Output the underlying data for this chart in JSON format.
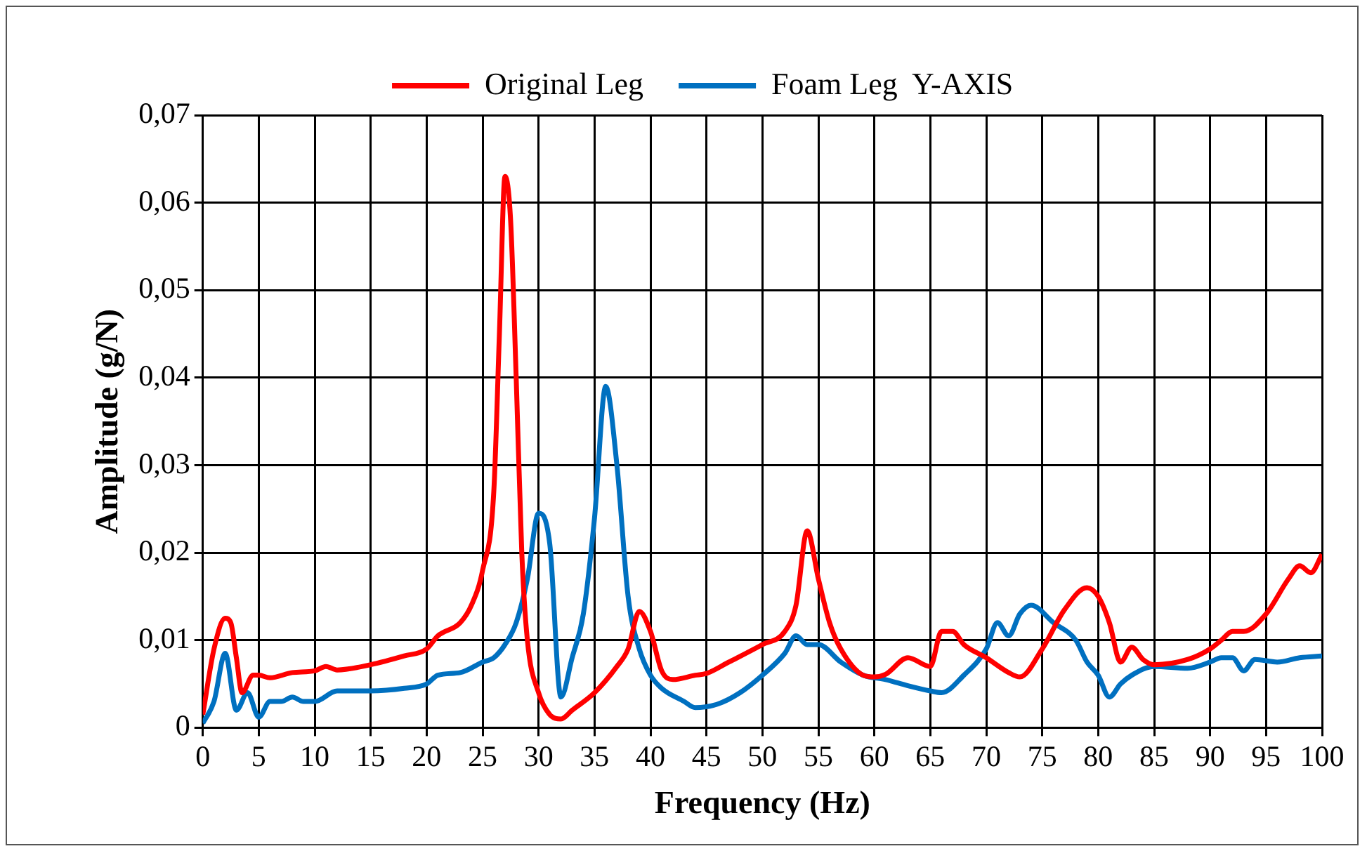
{
  "chart_data": {
    "type": "line",
    "xlabel": "Frequency (Hz)",
    "ylabel": "Amplitude (g/N)",
    "xlim": [
      0,
      100
    ],
    "xticks": [
      0,
      5,
      10,
      15,
      20,
      25,
      30,
      35,
      40,
      45,
      50,
      55,
      60,
      65,
      70,
      75,
      80,
      85,
      90,
      95,
      100
    ],
    "ylim": [
      0,
      0.07
    ],
    "yticks": [
      {
        "value": 0,
        "label": "0"
      },
      {
        "value": 0.01,
        "label": "0,01"
      },
      {
        "value": 0.02,
        "label": "0,02"
      },
      {
        "value": 0.03,
        "label": "0,03"
      },
      {
        "value": 0.04,
        "label": "0,04"
      },
      {
        "value": 0.05,
        "label": "0,05"
      },
      {
        "value": 0.06,
        "label": "0,06"
      },
      {
        "value": 0.07,
        "label": "0,07"
      }
    ],
    "grid": true,
    "legend": "top",
    "marker": "none",
    "line_style": "solid",
    "series": [
      {
        "name": "Original Leg",
        "color": "#ff0000",
        "x": [
          0,
          1,
          2,
          2.5,
          3,
          3.5,
          4.5,
          5,
          6,
          8,
          10,
          11,
          12,
          15,
          18,
          20,
          21,
          23,
          24,
          25,
          26,
          26.5,
          27,
          27.5,
          28,
          28.5,
          29,
          30,
          31,
          32,
          33,
          35,
          37,
          38,
          39,
          40,
          41,
          42,
          44,
          45,
          47,
          50,
          52,
          53,
          54,
          55,
          56,
          57,
          59,
          60,
          61,
          63,
          65,
          66,
          67,
          68,
          70,
          72,
          73,
          75,
          77,
          79,
          80,
          81,
          82,
          83,
          84,
          85,
          88,
          90,
          91,
          92,
          93,
          95,
          97,
          98,
          99,
          100
        ],
        "values": [
          0.0015,
          0.009,
          0.0125,
          0.012,
          0.008,
          0.004,
          0.006,
          0.006,
          0.0057,
          0.0063,
          0.0065,
          0.007,
          0.0066,
          0.0072,
          0.0082,
          0.009,
          0.0105,
          0.012,
          0.014,
          0.018,
          0.027,
          0.045,
          0.063,
          0.058,
          0.04,
          0.02,
          0.01,
          0.004,
          0.0015,
          0.001,
          0.002,
          0.004,
          0.007,
          0.009,
          0.0133,
          0.011,
          0.0065,
          0.0055,
          0.006,
          0.0062,
          0.0075,
          0.0095,
          0.011,
          0.014,
          0.0225,
          0.017,
          0.012,
          0.009,
          0.006,
          0.0058,
          0.0061,
          0.008,
          0.007,
          0.011,
          0.011,
          0.0095,
          0.008,
          0.0063,
          0.0058,
          0.009,
          0.0135,
          0.016,
          0.015,
          0.012,
          0.0075,
          0.0092,
          0.0078,
          0.0072,
          0.0078,
          0.009,
          0.01,
          0.011,
          0.011,
          0.013,
          0.017,
          0.0185,
          0.0177,
          0.0198
        ]
      },
      {
        "name": "Foam Leg  Y-AXIS",
        "color": "#0070c0",
        "x": [
          0,
          1,
          2,
          3,
          4,
          5,
          6,
          7,
          8,
          9,
          10,
          12,
          15,
          18,
          20,
          21,
          23,
          25,
          26,
          27,
          28,
          29,
          30,
          31,
          32,
          33,
          34,
          35,
          36,
          37,
          38,
          39,
          40,
          41,
          43,
          44,
          46,
          48,
          50,
          52,
          53,
          54,
          55,
          57,
          59,
          61,
          63,
          65,
          66,
          68,
          70,
          71,
          72,
          73,
          74,
          76,
          78,
          79,
          80,
          81,
          82,
          83,
          85,
          88,
          90,
          91,
          92,
          93,
          94,
          96,
          98,
          100
        ],
        "values": [
          0.0005,
          0.003,
          0.0085,
          0.002,
          0.004,
          0.0012,
          0.003,
          0.003,
          0.0035,
          0.003,
          0.003,
          0.0042,
          0.0042,
          0.0045,
          0.005,
          0.006,
          0.0063,
          0.0075,
          0.008,
          0.0095,
          0.012,
          0.017,
          0.0245,
          0.021,
          0.0035,
          0.008,
          0.013,
          0.024,
          0.039,
          0.03,
          0.015,
          0.009,
          0.006,
          0.0045,
          0.003,
          0.0023,
          0.0027,
          0.004,
          0.006,
          0.0085,
          0.0105,
          0.0095,
          0.0095,
          0.0075,
          0.006,
          0.0055,
          0.0048,
          0.0042,
          0.004,
          0.006,
          0.009,
          0.012,
          0.0105,
          0.013,
          0.014,
          0.012,
          0.01,
          0.0075,
          0.006,
          0.0035,
          0.005,
          0.006,
          0.007,
          0.0068,
          0.0075,
          0.008,
          0.008,
          0.0065,
          0.0078,
          0.0075,
          0.008,
          0.0082
        ]
      }
    ]
  }
}
